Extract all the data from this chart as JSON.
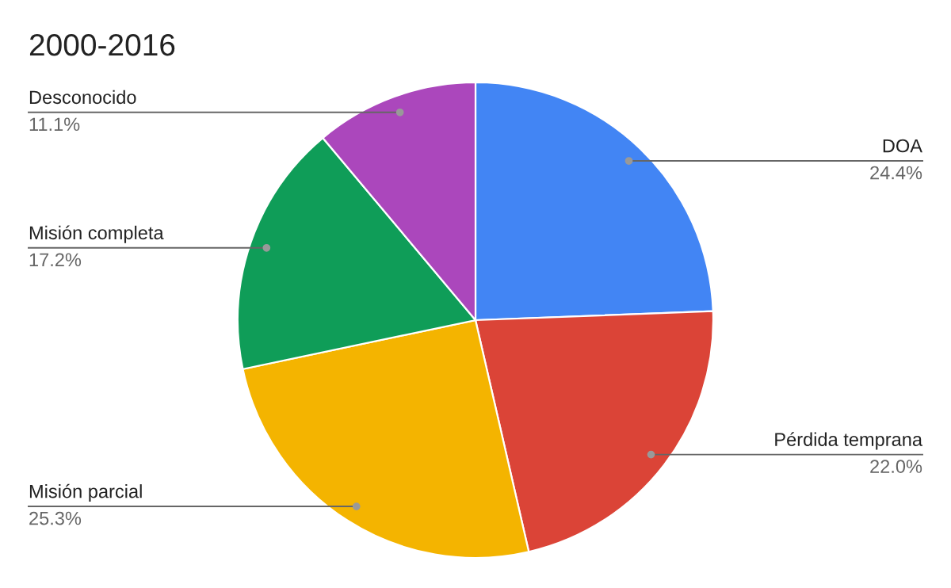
{
  "chart_data": {
    "type": "pie",
    "title": "2000-2016",
    "categories": [
      "DOA",
      "Pérdida temprana",
      "Misión parcial",
      "Misión completa",
      "Desconocido"
    ],
    "values": [
      24.4,
      22.0,
      25.3,
      17.2,
      11.1
    ],
    "value_labels": [
      "24.4%",
      "22.0%",
      "25.3%",
      "17.2%",
      "11.1%"
    ],
    "colors": [
      "#4285f4",
      "#db4437",
      "#f4b400",
      "#0f9d58",
      "#ab47bc"
    ],
    "legend": false
  }
}
